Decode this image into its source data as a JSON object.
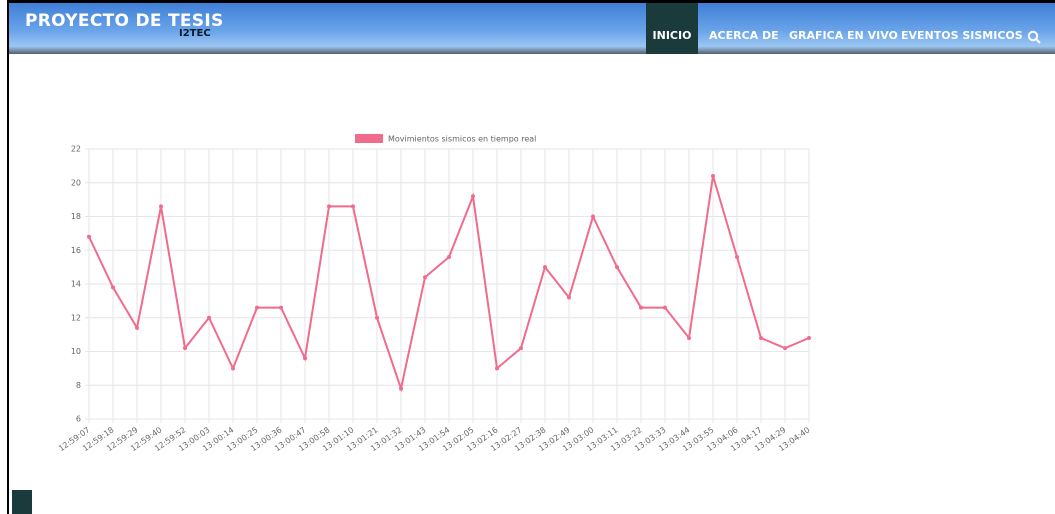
{
  "header": {
    "title": "PROYECTO DE TESIS",
    "subtitle": "I2TEC",
    "nav": [
      "INICIO",
      "ACERCA DE",
      "GRAFICA EN VIVO",
      "EVENTOS SISMICOS"
    ]
  },
  "chart_data": {
    "type": "line",
    "legend": "Movimientos sismicos en tiempo real",
    "color": "#f06b8c",
    "categories": [
      "12:59:07",
      "12:59:18",
      "12:59:29",
      "12:59:40",
      "12:59:52",
      "13:00:03",
      "13:00:14",
      "13:00:25",
      "13:00:36",
      "13:00:47",
      "13:00:58",
      "13:01:10",
      "13:01:21",
      "13:01:32",
      "13:01:43",
      "13:01:54",
      "13:02:05",
      "13:02:16",
      "13:02:27",
      "13:02:38",
      "13:02:49",
      "13:03:00",
      "13:03:11",
      "13:03:22",
      "13:03:33",
      "13:03:44",
      "13:03:55",
      "13:04:06",
      "13:04:17",
      "13:04:29",
      "13:04:40"
    ],
    "values": [
      16.8,
      13.8,
      11.4,
      18.6,
      10.2,
      12,
      9,
      12.6,
      12.6,
      9.6,
      18.6,
      18.6,
      12,
      7.8,
      14.4,
      15.6,
      19.2,
      9,
      10.2,
      15,
      13.2,
      18,
      15,
      12.6,
      12.6,
      10.8,
      20.4,
      15.6,
      10.8,
      10.2,
      10.8
    ],
    "ylim": [
      6,
      22
    ],
    "yticks": [
      6,
      8,
      10,
      12,
      14,
      16,
      18,
      20,
      22
    ],
    "grid": true
  }
}
